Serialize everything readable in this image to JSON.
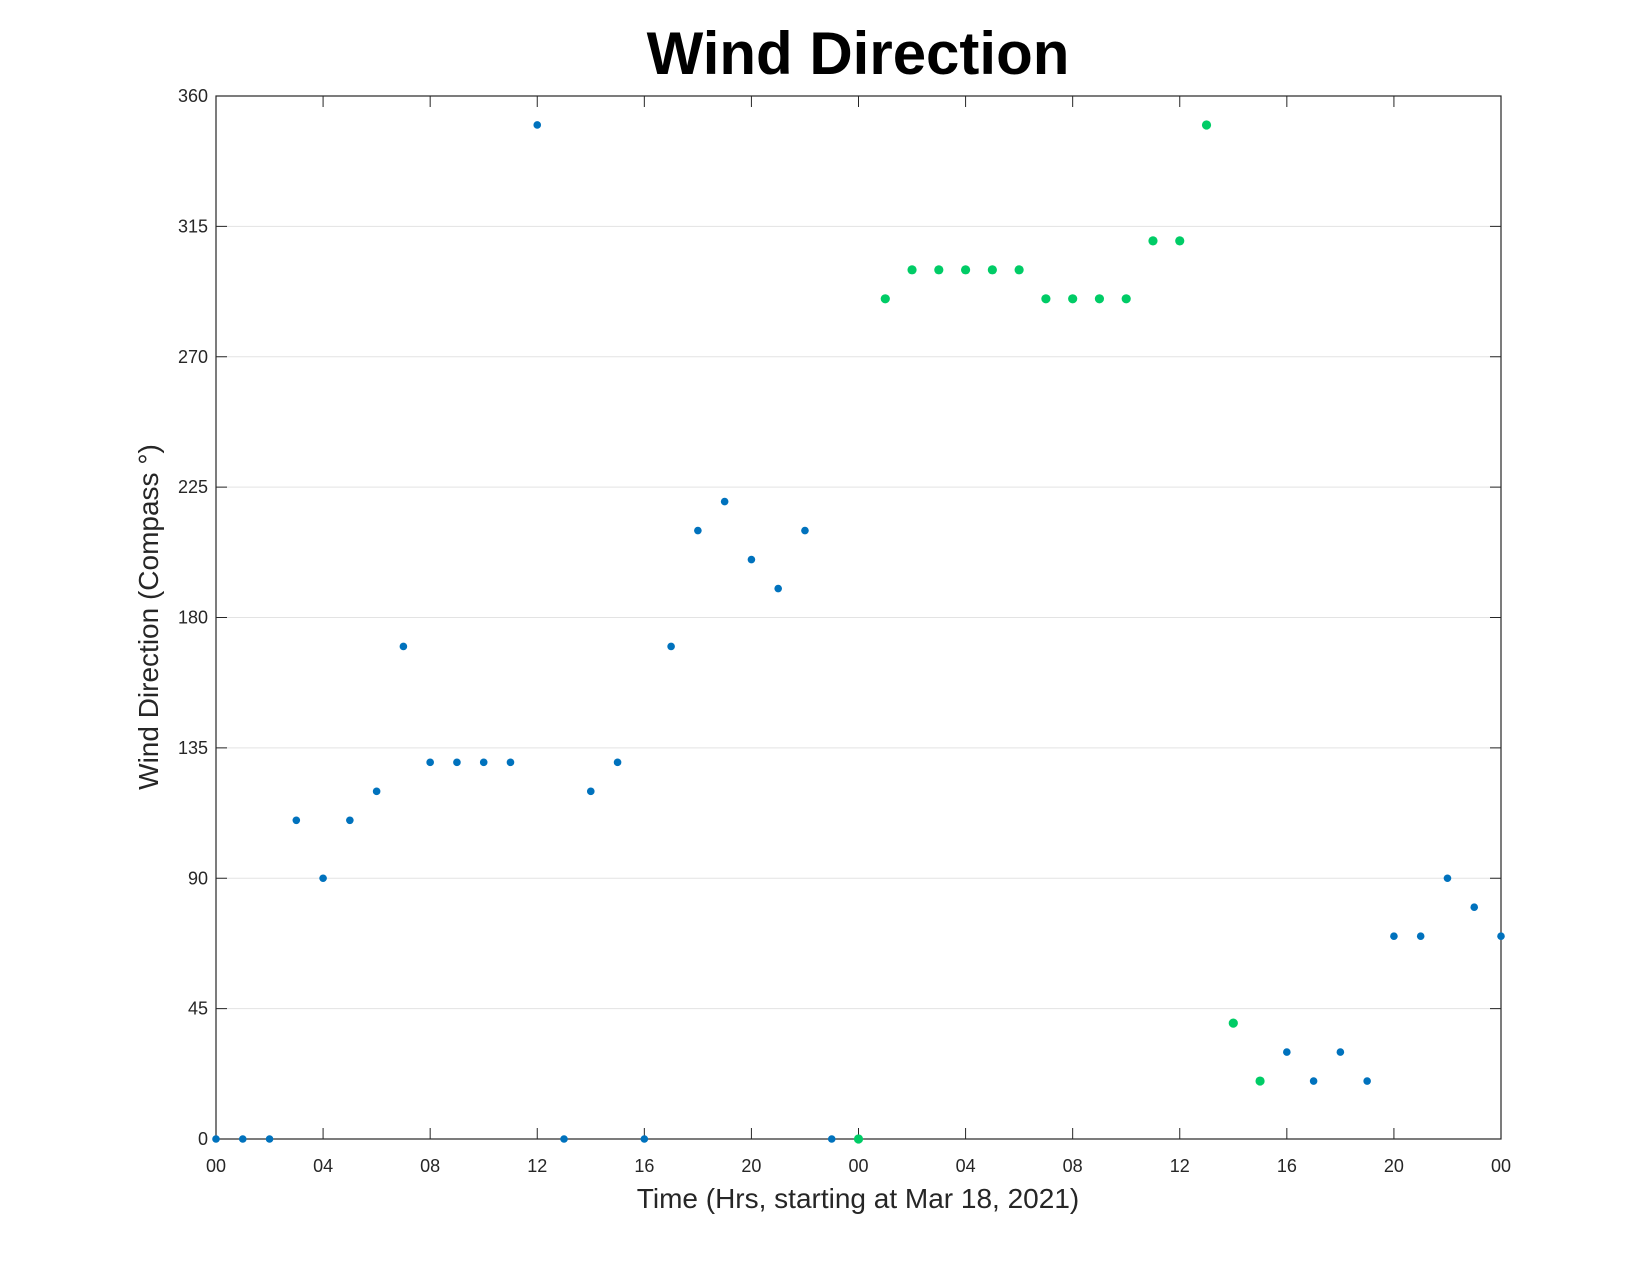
{
  "chart_data": {
    "type": "scatter",
    "title": "Wind Direction",
    "xlabel": "Time (Hrs, starting at Mar 18, 2021)",
    "ylabel": "Wind Direction (Compass °)",
    "ylim": [
      0,
      360
    ],
    "yticks": [
      0,
      45,
      90,
      135,
      180,
      225,
      270,
      315,
      360
    ],
    "xlim": [
      0,
      48
    ],
    "x_unit": "hours since start",
    "xticks": [
      0,
      4,
      8,
      12,
      16,
      20,
      24,
      28,
      32,
      36,
      40,
      44,
      48
    ],
    "xtick_labels": [
      "00",
      "04",
      "08",
      "12",
      "16",
      "20",
      "00",
      "04",
      "08",
      "12",
      "16",
      "20",
      "00"
    ],
    "grid": "horizontal",
    "colors": {
      "blue": "#0072BD",
      "green": "#00CC66"
    },
    "series": [
      {
        "color": "#0072BD",
        "x": [
          0,
          1,
          2,
          3,
          4,
          5,
          6,
          7,
          8,
          9,
          10,
          11,
          12,
          13,
          14,
          15,
          16,
          17,
          18,
          19,
          20,
          21,
          22,
          23,
          40,
          41,
          42,
          43,
          44,
          45,
          46,
          47,
          48
        ],
        "y": [
          0,
          0,
          0,
          110,
          90,
          110,
          120,
          170,
          130,
          130,
          130,
          130,
          350,
          0,
          120,
          130,
          0,
          170,
          210,
          220,
          200,
          190,
          210,
          0,
          30,
          20,
          30,
          20,
          70,
          70,
          90,
          80,
          70
        ]
      },
      {
        "color": "#00CC66",
        "x": [
          24,
          25,
          26,
          27,
          28,
          29,
          30,
          31,
          32,
          33,
          34,
          35,
          36,
          37,
          38,
          39
        ],
        "y": [
          0,
          290,
          300,
          300,
          300,
          300,
          300,
          290,
          290,
          290,
          290,
          310,
          310,
          350,
          40,
          20
        ]
      }
    ]
  }
}
